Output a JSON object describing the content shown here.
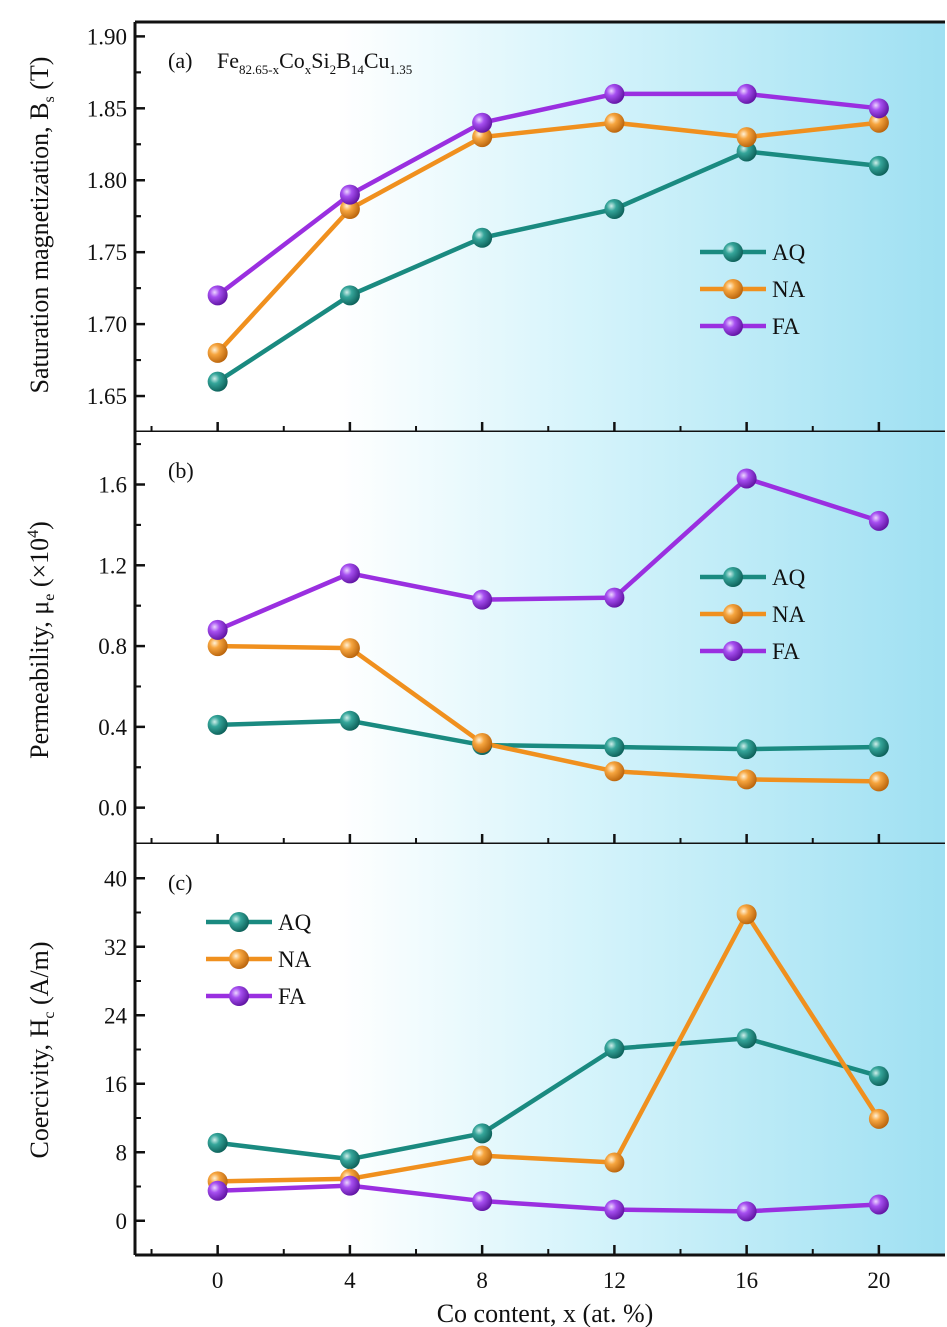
{
  "colors": {
    "AQ": "#1a8a80",
    "NA": "#f0901e",
    "FA": "#9a2fe0",
    "bg_left": "#ffffff",
    "bg_right": "#9fe0f2"
  },
  "x_axis": {
    "label": "Co content, x (at. %)",
    "ticks": [
      0,
      4,
      8,
      12,
      16,
      20
    ],
    "xlim": [
      -2.5,
      22
    ]
  },
  "chart_data": [
    {
      "type": "line",
      "panel_label": "(a)",
      "composition": {
        "base1": "Fe",
        "sub1": "82.65-x",
        "base2": "Co",
        "sub2": "x",
        "base3": "Si",
        "sub3": "2",
        "base4": "B",
        "sub4": "14",
        "base5": "Cu",
        "sub5": "1.35"
      },
      "ylabel": "Saturation magnetization, B",
      "ylabel_sub": "s",
      "ylabel_unit": " (T)",
      "ylim": [
        1.625,
        1.91
      ],
      "yticks": [
        "1.65",
        "1.70",
        "1.75",
        "1.80",
        "1.85",
        "1.90"
      ],
      "legend_position": "center-right",
      "x": [
        0,
        4,
        8,
        12,
        16,
        20
      ],
      "series": [
        {
          "name": "AQ",
          "values": [
            1.66,
            1.72,
            1.76,
            1.78,
            1.82,
            1.81
          ]
        },
        {
          "name": "NA",
          "values": [
            1.68,
            1.78,
            1.83,
            1.84,
            1.83,
            1.84
          ]
        },
        {
          "name": "FA",
          "values": [
            1.72,
            1.79,
            1.84,
            1.86,
            1.86,
            1.85
          ]
        }
      ]
    },
    {
      "type": "line",
      "panel_label": "(b)",
      "ylabel": "Permeability, μ",
      "ylabel_sub": "e",
      "ylabel_unit": " (×10",
      "ylabel_sup": "4",
      "ylabel_close": ")",
      "ylim": [
        -0.18,
        1.86
      ],
      "yticks": [
        "0.0",
        "0.4",
        "0.8",
        "1.2",
        "1.6"
      ],
      "legend_position": "center-right",
      "x": [
        0,
        4,
        8,
        12,
        16,
        20
      ],
      "series": [
        {
          "name": "AQ",
          "values": [
            0.41,
            0.43,
            0.31,
            0.3,
            0.29,
            0.3
          ]
        },
        {
          "name": "NA",
          "values": [
            0.8,
            0.79,
            0.32,
            0.18,
            0.14,
            0.13
          ]
        },
        {
          "name": "FA",
          "values": [
            0.88,
            1.16,
            1.03,
            1.04,
            1.63,
            1.42
          ]
        }
      ]
    },
    {
      "type": "line",
      "panel_label": "(c)",
      "ylabel": "Coercivity, H",
      "ylabel_sub": "c",
      "ylabel_unit": " (A/m)",
      "ylim": [
        -4,
        44
      ],
      "yticks": [
        "0",
        "8",
        "16",
        "24",
        "32",
        "40"
      ],
      "legend_position": "top-left",
      "x": [
        0,
        4,
        8,
        12,
        16,
        20
      ],
      "series": [
        {
          "name": "AQ",
          "values": [
            9.1,
            7.2,
            10.2,
            20.1,
            21.3,
            16.9
          ]
        },
        {
          "name": "NA",
          "values": [
            4.6,
            4.9,
            7.6,
            6.8,
            35.8,
            11.9
          ]
        },
        {
          "name": "FA",
          "values": [
            3.5,
            4.1,
            2.3,
            1.3,
            1.1,
            1.9
          ]
        }
      ]
    }
  ]
}
